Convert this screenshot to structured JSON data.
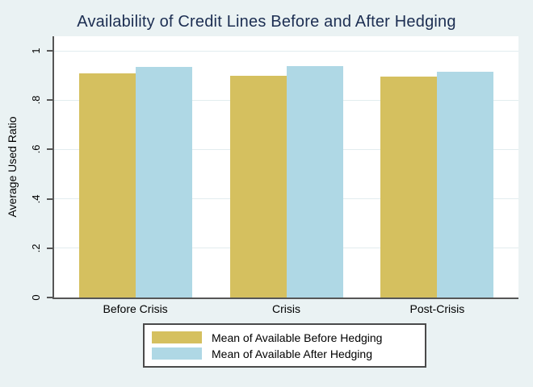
{
  "chart_data": {
    "type": "bar",
    "title": "Availability of Credit Lines Before and After Hedging",
    "ylabel": "Average Used Ratio",
    "xlabel": "",
    "categories": [
      "Before Crisis",
      "Crisis",
      "Post-Crisis"
    ],
    "series": [
      {
        "name": "Mean of Available Before Hedging",
        "color": "#D5C05F",
        "values": [
          0.91,
          0.9,
          0.895
        ]
      },
      {
        "name": "Mean of Available After Hedging",
        "color": "#AFD8E5",
        "values": [
          0.935,
          0.937,
          0.915
        ]
      }
    ],
    "ylim": [
      0,
      1
    ],
    "yticks": [
      0,
      0.2,
      0.4,
      0.6,
      0.8,
      1
    ],
    "ytick_labels": [
      "0",
      ".2",
      ".4",
      ".6",
      ".8",
      "1"
    ],
    "grid": true,
    "legend_position": "bottom"
  },
  "style": {
    "background": "#EAF2F3",
    "plot_background": "#FFFFFF",
    "grid_color": "#E2EDEF",
    "axis_color": "#565656",
    "title_color": "#1C2E52",
    "text_color": "#000000",
    "legend_border_color": "#4A4A4A"
  }
}
